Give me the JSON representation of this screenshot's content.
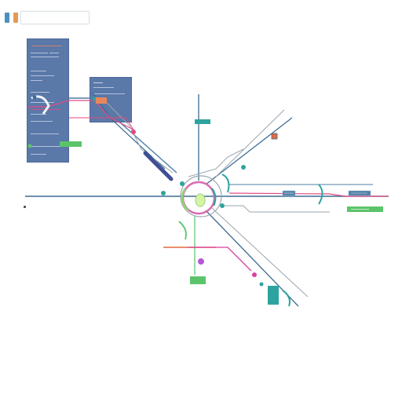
{
  "toolbar": {
    "title": "",
    "search_placeholder": "",
    "tool_colors": [
      "#4a90c2",
      "#e49a52"
    ]
  },
  "colors": {
    "line_blue": "#3f6b93",
    "line_steel": "#4c7fa6",
    "line_gray": "#9aa6b0",
    "line_pink": "#e34a82",
    "line_magenta": "#d93f9f",
    "line_orange": "#e36a3c",
    "line_green": "#5bc46a",
    "line_teal": "#2da3a0",
    "line_navy": "#3f4f94",
    "line_violet": "#b35ad6",
    "panel_bg": "#5a78a8"
  },
  "map": {
    "icons": [
      "hub-icon",
      "station-icon",
      "interchange-icon"
    ]
  },
  "footer": {
    "label": ""
  }
}
